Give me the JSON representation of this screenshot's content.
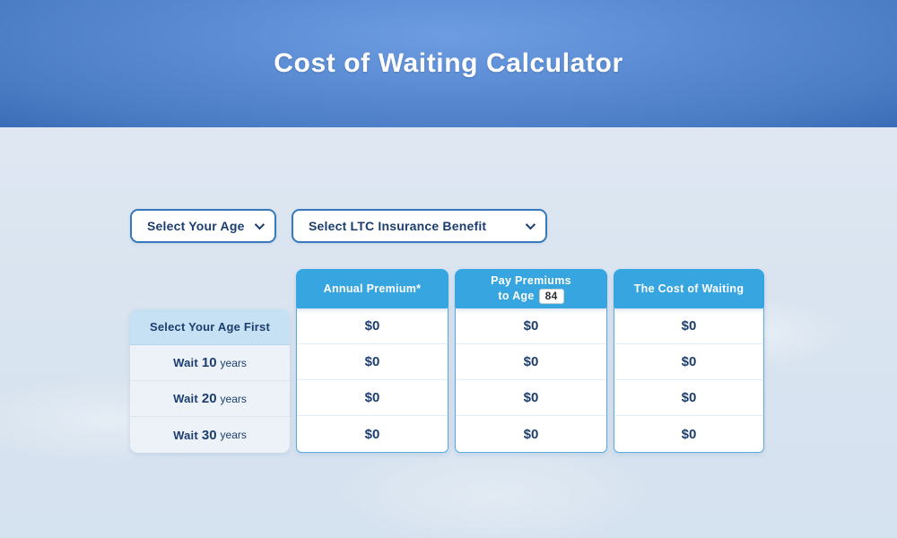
{
  "header": {
    "title": "Cost of Waiting Calculator"
  },
  "filters": {
    "age_select": {
      "value": "Select Your Age"
    },
    "benefit_select": {
      "value": "Select LTC Insurance Benefit"
    }
  },
  "table": {
    "columns": [
      {
        "title": "Annual Premium*"
      },
      {
        "title_line1": "Pay Premiums",
        "title_line2": "to Age",
        "age_input_value": "84"
      },
      {
        "title": "The Cost of Waiting"
      }
    ],
    "rows": [
      {
        "label": "Select Your Age First",
        "highlighted": true,
        "values": [
          "$0",
          "$0",
          "$0"
        ]
      },
      {
        "label_prefix": "Wait",
        "label_value": "10",
        "label_suffix": "years",
        "values": [
          "$0",
          "$0",
          "$0"
        ]
      },
      {
        "label_prefix": "Wait",
        "label_value": "20",
        "label_suffix": "years",
        "values": [
          "$0",
          "$0",
          "$0"
        ]
      },
      {
        "label_prefix": "Wait",
        "label_value": "30",
        "label_suffix": "years",
        "values": [
          "$0",
          "$0",
          "$0"
        ]
      }
    ]
  },
  "colors": {
    "accent_blue": "#37a5e0",
    "navy_text": "#1c3e6e",
    "banner_center": "#6d9ce2",
    "banner_edge": "#143a78",
    "highlight_row_bg": "#c6e1f3",
    "select_border": "#3579ba"
  }
}
